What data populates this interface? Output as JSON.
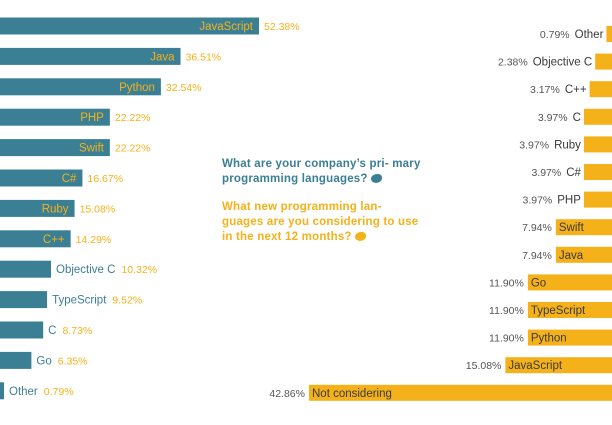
{
  "colors": {
    "current": "#3b7f95",
    "new": "#f5b11a",
    "label_dark": "#3a3a3a",
    "pct_gray": "#555555"
  },
  "questions": {
    "current": "What are your company’s pri- mary programming languages?",
    "new": "What new programming lan- guages are you considering to use in the next 12 months?"
  },
  "icons": {
    "share": "twitter-bird-icon"
  },
  "chart_data": [
    {
      "type": "bar",
      "orientation": "horizontal",
      "series": [
        {
          "categories": [
            "JavaScript",
            "Java",
            "Python",
            "PHP",
            "Swift",
            "C#",
            "Ruby",
            "C++",
            "Objective C",
            "TypeScript",
            "C",
            "Go",
            "Other"
          ],
          "values": [
            52.38,
            36.51,
            32.54,
            22.22,
            22.22,
            16.67,
            15.08,
            14.29,
            10.32,
            9.52,
            8.73,
            6.35,
            0.79
          ],
          "labels": [
            "52.38%",
            "36.51%",
            "32.54%",
            "22.22%",
            "22.22%",
            "16.67%",
            "15.08%",
            "14.29%",
            "10.32%",
            "9.52%",
            "8.73%",
            "6.35%",
            "0.79%"
          ]
        }
      ],
      "xlim": [
        0,
        100
      ]
    },
    {
      "type": "bar",
      "orientation": "horizontal",
      "series": [
        {
          "categories": [
            "Other",
            "Objective C",
            "C++",
            "C",
            "Ruby",
            "C#",
            "PHP",
            "Swift",
            "Java",
            "Go",
            "TypeScript",
            "Python",
            "JavaScript",
            "Not considering"
          ],
          "values": [
            0.79,
            2.38,
            3.17,
            3.97,
            3.97,
            3.97,
            3.97,
            7.94,
            7.94,
            11.9,
            11.9,
            11.9,
            15.08,
            42.86
          ],
          "labels": [
            "0.79%",
            "2.38%",
            "3.17%",
            "3.97%",
            "3.97%",
            "3.97%",
            "3.97%",
            "7.94%",
            "7.94%",
            "11.90%",
            "11.90%",
            "11.90%",
            "15.08%",
            "42.86%"
          ]
        }
      ],
      "xlim": [
        0,
        100
      ]
    }
  ]
}
